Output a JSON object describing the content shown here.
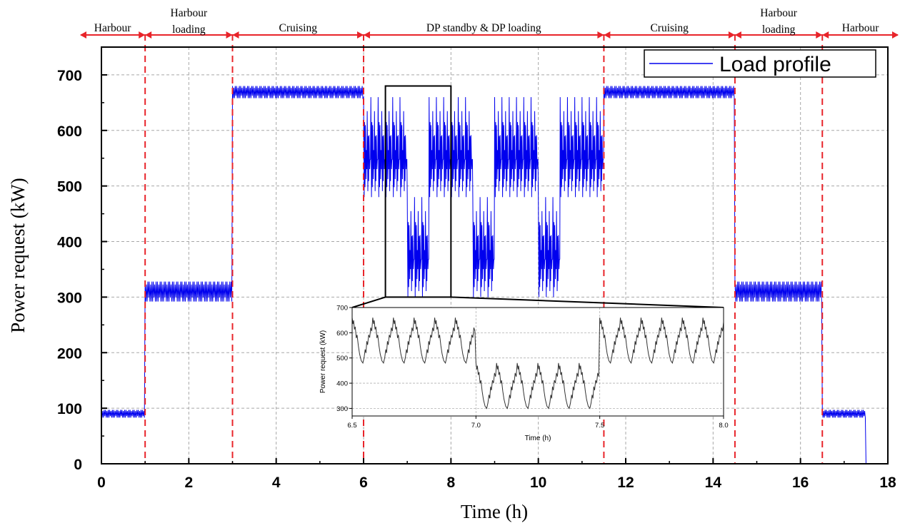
{
  "chart_data": [
    {
      "type": "line",
      "name": "main",
      "xlabel": "Time (h)",
      "ylabel": "Power request (kW)",
      "xlim": [
        0,
        18
      ],
      "ylim": [
        0,
        750
      ],
      "xticks": [
        "0",
        "2",
        "4",
        "6",
        "8",
        "10",
        "12",
        "14",
        "16",
        "18"
      ],
      "yticks": [
        "0",
        "100",
        "200",
        "300",
        "400",
        "500",
        "600",
        "700"
      ],
      "grid": true,
      "legend": {
        "label": "Load profile",
        "placement": "top-right"
      },
      "series_color": "#0000ee",
      "phases": [
        {
          "label": [
            "Harbour"
          ],
          "start": 0,
          "end": 1
        },
        {
          "label": [
            "Harbour",
            "loading"
          ],
          "start": 1,
          "end": 3
        },
        {
          "label": [
            "Cruising"
          ],
          "start": 3,
          "end": 6
        },
        {
          "label": [
            "DP standby & DP loading"
          ],
          "start": 6,
          "end": 11.5
        },
        {
          "label": [
            "Cruising"
          ],
          "start": 11.5,
          "end": 14.5
        },
        {
          "label": [
            "Harbour",
            "loading"
          ],
          "start": 14.5,
          "end": 16.5
        },
        {
          "label": [
            "Harbour"
          ],
          "start": 16.5,
          "end": 17.5
        }
      ],
      "phase_boundary_color": "#e8242a",
      "segments": [
        {
          "start": 0,
          "end": 1,
          "low": 83,
          "high": 97
        },
        {
          "start": 1,
          "end": 3,
          "low": 292,
          "high": 328
        },
        {
          "start": 3,
          "end": 6,
          "low": 658,
          "high": 680
        },
        {
          "start": 6,
          "end": 7,
          "low": 480,
          "high": 660,
          "mode": "dp_high"
        },
        {
          "start": 7,
          "end": 7.5,
          "low": 300,
          "high": 480,
          "mode": "dp_low"
        },
        {
          "start": 7.5,
          "end": 8.5,
          "low": 480,
          "high": 660,
          "mode": "dp_high"
        },
        {
          "start": 8.5,
          "end": 9,
          "low": 300,
          "high": 480,
          "mode": "dp_low"
        },
        {
          "start": 9,
          "end": 10,
          "low": 480,
          "high": 660,
          "mode": "dp_high"
        },
        {
          "start": 10,
          "end": 10.5,
          "low": 300,
          "high": 480,
          "mode": "dp_low"
        },
        {
          "start": 10.5,
          "end": 11.5,
          "low": 480,
          "high": 660,
          "mode": "dp_high"
        },
        {
          "start": 11.5,
          "end": 14.5,
          "low": 658,
          "high": 680
        },
        {
          "start": 14.5,
          "end": 16.5,
          "low": 292,
          "high": 328
        },
        {
          "start": 16.5,
          "end": 17.5,
          "low": 83,
          "high": 97
        }
      ],
      "zoom_box": {
        "x_range": [
          6.5,
          8.0
        ],
        "y_range": [
          300,
          680
        ]
      }
    },
    {
      "type": "line",
      "name": "inset",
      "xlabel": "Time (h)",
      "ylabel": "Power request (kW)",
      "xlim": [
        6.5,
        8.0
      ],
      "ylim": [
        270,
        700
      ],
      "xticks": [
        "6.5",
        "7.0",
        "7.5",
        "8.0"
      ],
      "yticks": [
        "300",
        "400",
        "500",
        "600",
        "700"
      ],
      "grid": true,
      "series_color": "#333333",
      "segments": [
        {
          "start": 6.5,
          "end": 7.0,
          "low": 480,
          "high": 660,
          "cycles": 6
        },
        {
          "start": 7.0,
          "end": 7.5,
          "low": 300,
          "high": 480,
          "cycles": 6
        },
        {
          "start": 7.5,
          "end": 8.0,
          "low": 480,
          "high": 660,
          "cycles": 6
        }
      ]
    }
  ]
}
